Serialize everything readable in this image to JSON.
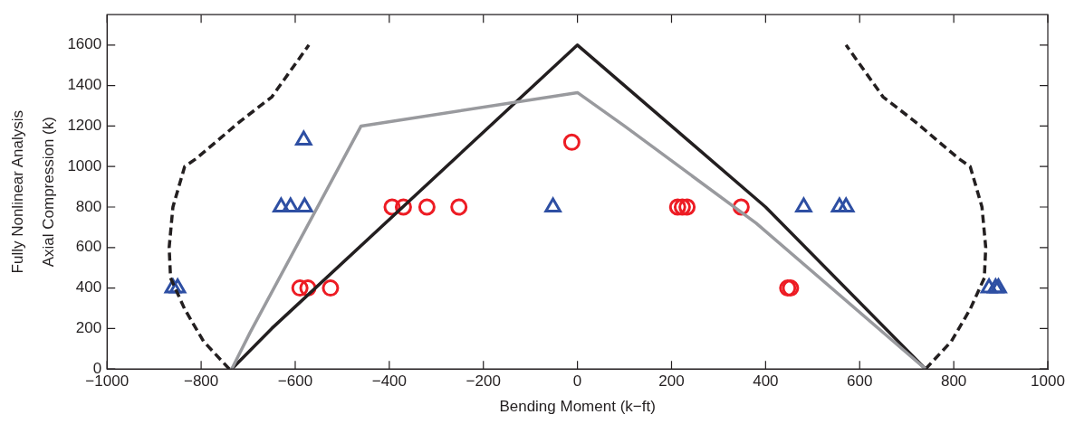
{
  "chart_data": {
    "type": "scatter",
    "xlabel": "Bending Moment (k−ft)",
    "ylabel": "Axial Compression (k)",
    "annotations": [
      "Fully Nonlinear Analysis"
    ],
    "xlim": [
      -1000,
      1000
    ],
    "xticks": [
      {
        "value": -1000,
        "label": "−1000"
      },
      {
        "value": -800,
        "label": "−800"
      },
      {
        "value": -600,
        "label": "−600"
      },
      {
        "value": -400,
        "label": "−400"
      },
      {
        "value": -200,
        "label": "−200"
      },
      0,
      200,
      400,
      600,
      800,
      1000
    ],
    "ylim": [
      0,
      1750
    ],
    "yticks": [
      0,
      200,
      400,
      600,
      800,
      1000,
      1200,
      1400,
      1600
    ],
    "series": [
      {
        "type": "line",
        "color": "#999a9e",
        "marker": "none",
        "line_style": "solid",
        "x": [
          -735,
          -696,
          -460,
          0,
          100,
          380,
          740
        ],
        "values": [
          0,
          180,
          1200,
          1365,
          1200,
          720,
          0
        ]
      },
      {
        "type": "line",
        "color": "#231f20",
        "marker": "none",
        "line_style": "solid",
        "x": [
          -735,
          -650,
          0,
          400,
          740
        ],
        "values": [
          0,
          200,
          1600,
          800,
          0
        ]
      },
      {
        "type": "line",
        "color": "#231f20",
        "marker": "none",
        "line_style": "dashed",
        "x": [
          -740,
          -795,
          -835,
          -865,
          -868,
          -860,
          -835,
          -810,
          -716,
          -650,
          -571
        ],
        "values": [
          0,
          137,
          296,
          450,
          600,
          800,
          1000,
          1040,
          1225,
          1343,
          1600
        ]
      },
      {
        "type": "line",
        "color": "#231f20",
        "marker": "none",
        "line_style": "dashed",
        "x": [
          740,
          795,
          835,
          865,
          868,
          860,
          835,
          810,
          716,
          650,
          571
        ],
        "values": [
          0,
          137,
          296,
          450,
          600,
          800,
          1000,
          1040,
          1225,
          1343,
          1600
        ]
      },
      {
        "type": "scatter",
        "color": "#ed1c24",
        "marker": "circle",
        "x": [
          -12,
          -394,
          -370,
          -320,
          -252,
          213,
          223,
          233,
          348,
          -590,
          -573,
          -525,
          447,
          453
        ],
        "values": [
          1120,
          800,
          800,
          800,
          800,
          800,
          800,
          800,
          800,
          400,
          400,
          400,
          400,
          400
        ]
      },
      {
        "type": "scatter",
        "color": "#2e4fa3",
        "marker": "triangle",
        "x": [
          -582,
          -630,
          -610,
          -580,
          -52,
          481,
          557,
          571,
          -860,
          -850,
          875,
          889,
          895
        ],
        "values": [
          1130,
          800,
          800,
          800,
          800,
          800,
          800,
          800,
          400,
          400,
          400,
          400,
          400
        ]
      }
    ]
  }
}
